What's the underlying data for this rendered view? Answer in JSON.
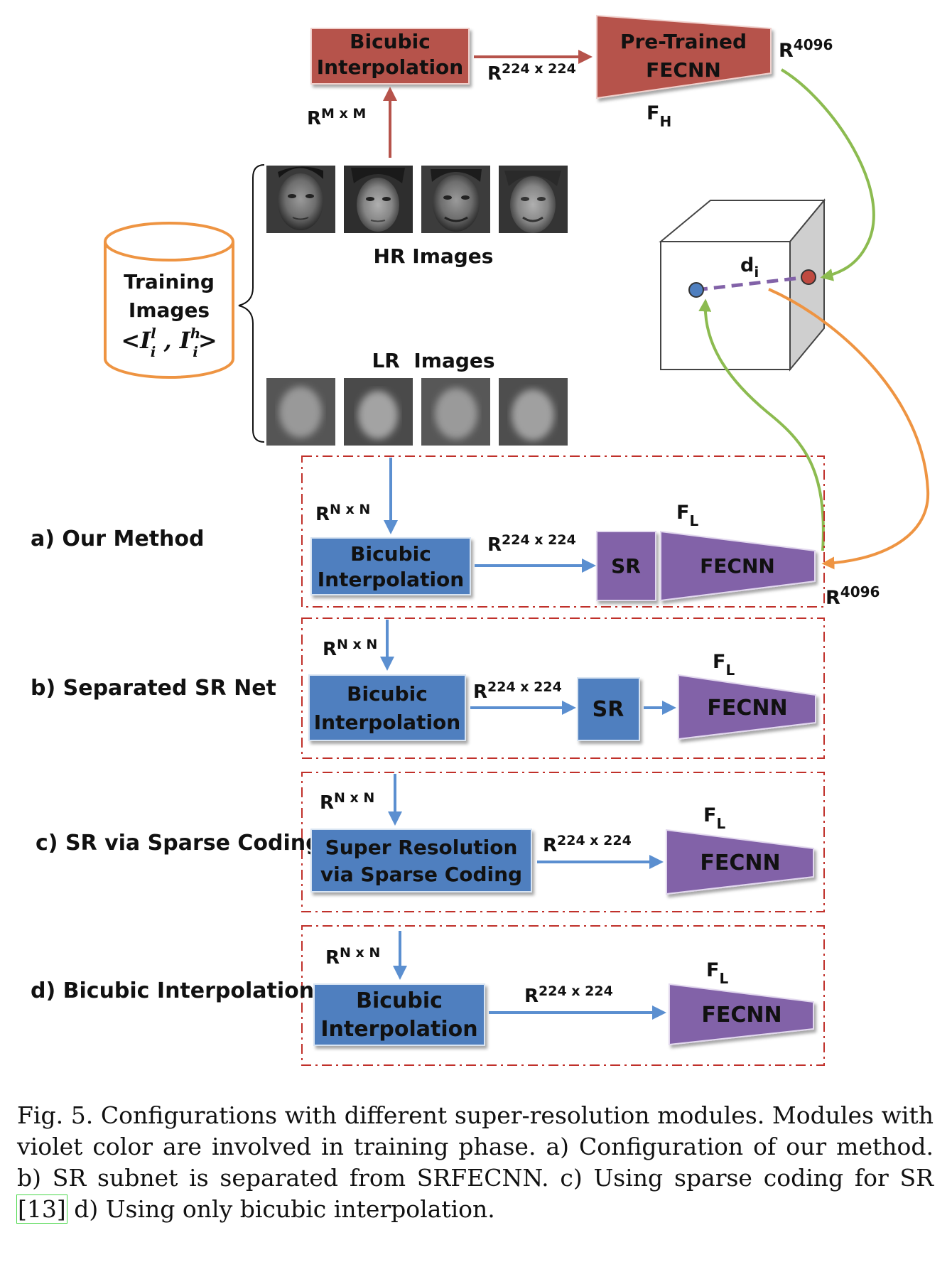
{
  "top": {
    "bicubic_l1": "Bicubic",
    "bicubic_l2": "Interpolation",
    "pretrained_l1": "Pre-Trained",
    "pretrained_l2": "FECNN",
    "r_out_base": "R",
    "r_out_sup": "4096",
    "r_in_base": "R",
    "r_in_sup": "224 x 224",
    "rm_base": "R",
    "rm_sup": "M x M",
    "fh_base": "F",
    "fh_sub": "H"
  },
  "training": {
    "line1": "Training",
    "line2": "Images",
    "line3": "<I",
    "l_sup": "l",
    "i_sub1": "i",
    "comma": " , I",
    "h_sup": "h",
    "i_sub2": "i",
    "close": ">"
  },
  "images": {
    "hr_label": "HR Images",
    "lr_label": "LR  Images"
  },
  "cube": {
    "d_base": "d",
    "d_sub": "i"
  },
  "colors": {
    "red_box": "#b6534b",
    "blue_box": "#4f7fbf",
    "violet_box": "#8262a8",
    "green_arrow": "#8cbb50",
    "orange": "#ee9442",
    "dash_red": "#c0302a"
  },
  "rows": [
    {
      "title": "a) Our Method",
      "r_in_base": "R",
      "r_in_sup": "N x N",
      "box_l1": "Bicubic",
      "box_l2": "Interpolation",
      "r_mid_base": "R",
      "r_mid_sup": "224 x 224",
      "sr": "SR",
      "fecnn": "FECNN",
      "fl_base": "F",
      "fl_sub": "L",
      "r_out_base": "R",
      "r_out_sup": "4096"
    },
    {
      "title": "b) Separated SR Net",
      "r_in_base": "R",
      "r_in_sup": "N x N",
      "box_l1": "Bicubic",
      "box_l2": "Interpolation",
      "r_mid_base": "R",
      "r_mid_sup": "224 x 224",
      "sr": "SR",
      "fecnn": "FECNN",
      "fl_base": "F",
      "fl_sub": "L"
    },
    {
      "title": "c) SR via Sparse Coding",
      "r_in_base": "R",
      "r_in_sup": "N x N",
      "box_l1": "Super Resolution",
      "box_l2": "via Sparse Coding",
      "r_mid_base": "R",
      "r_mid_sup": "224 x 224",
      "fecnn": "FECNN",
      "fl_base": "F",
      "fl_sub": "L"
    },
    {
      "title": "d) Bicubic Interpolation",
      "r_in_base": "R",
      "r_in_sup": "N x N",
      "box_l1": "Bicubic",
      "box_l2": "Interpolation",
      "r_mid_base": "R",
      "r_mid_sup": "224 x 224",
      "fecnn": "FECNN",
      "fl_base": "F",
      "fl_sub": "L"
    }
  ],
  "caption": {
    "text1": "Fig. 5.  Configurations with different super-resolution modules. Modules with violet color are involved in training phase. a) Configuration of our method. b) SR subnet is separated from SRFECNN. c) Using sparse coding for SR ",
    "ref": "[13]",
    "text2": " d) Using only bicubic interpolation."
  }
}
